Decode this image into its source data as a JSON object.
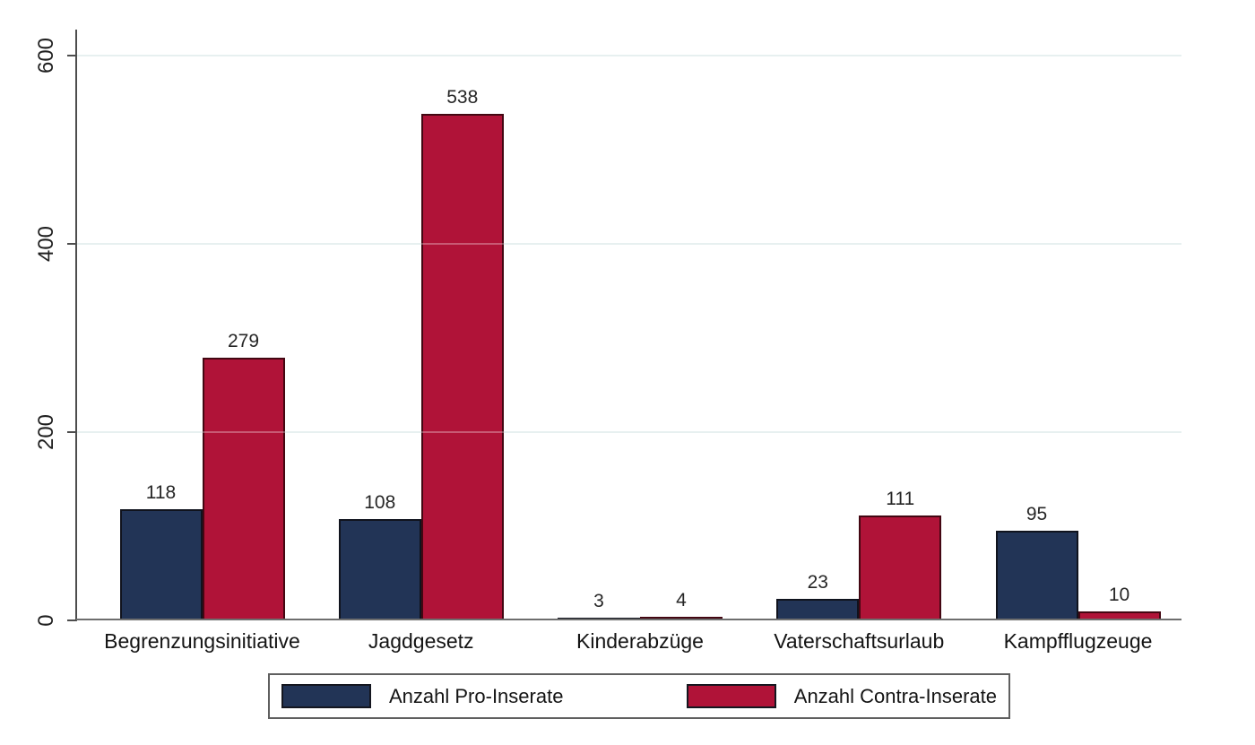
{
  "chart_data": {
    "type": "bar",
    "categories": [
      "Begrenzungsinitiative",
      "Jagdgesetz",
      "Kinderabzüge",
      "Vaterschaftsurlaub",
      "Kampfflugzeuge"
    ],
    "series": [
      {
        "name": "Anzahl Pro-Inserate",
        "color": "#223456",
        "border_color": "#10131d",
        "values": [
          118,
          108,
          3,
          23,
          95
        ]
      },
      {
        "name": "Anzahl Contra-Inserate",
        "color": "#b01338",
        "border_color": "#430712",
        "values": [
          279,
          538,
          4,
          111,
          10
        ]
      }
    ],
    "yticks": [
      0,
      200,
      400,
      600
    ],
    "ylim": [
      0,
      600
    ],
    "grid": true,
    "bar_labels": true,
    "legend_position": "bottom-center"
  },
  "colors": {
    "background": "#ffffff",
    "gridline": "#ddeaea",
    "axis": "#4d4d4d",
    "baseline": "#6e6e6e",
    "text": "#1f1f1f"
  }
}
